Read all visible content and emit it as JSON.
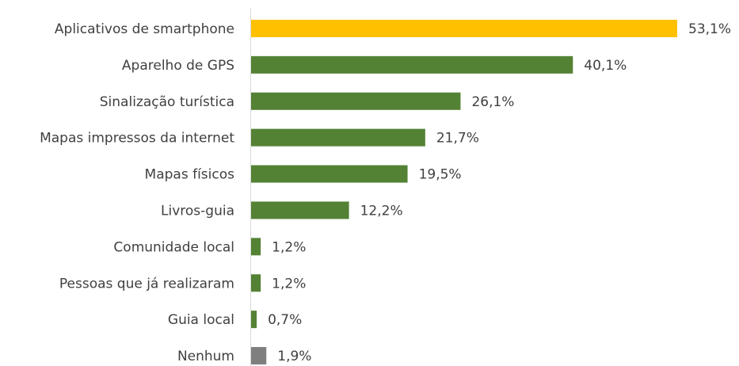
{
  "chart_data": {
    "type": "bar",
    "orientation": "horizontal",
    "categories": [
      "Aplicativos de smartphone",
      "Aparelho de GPS",
      "Sinalização turística",
      "Mapas impressos da internet",
      "Mapas físicos",
      "Livros-guia",
      "Comunidade local",
      "Pessoas que já realizaram",
      "Guia local",
      "Nenhum"
    ],
    "values": [
      53.1,
      40.1,
      26.1,
      21.7,
      19.5,
      12.2,
      1.2,
      1.2,
      0.7,
      1.9
    ],
    "value_labels": [
      "53,1%",
      "40,1%",
      "26,1%",
      "21,7%",
      "19,5%",
      "12,2%",
      "1,2%",
      "1,2%",
      "0,7%",
      "1,9%"
    ],
    "colors": [
      "#ffc000",
      "#548235",
      "#548235",
      "#548235",
      "#548235",
      "#548235",
      "#548235",
      "#548235",
      "#548235",
      "#7f7f7f"
    ]
  }
}
